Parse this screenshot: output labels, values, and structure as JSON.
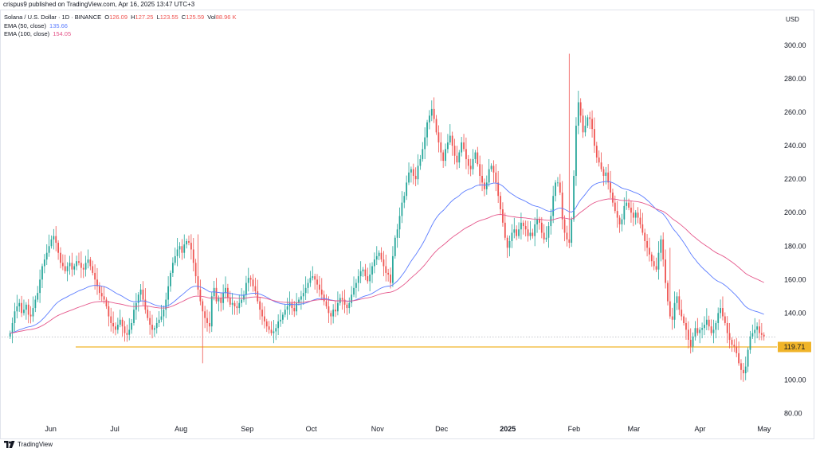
{
  "header": {
    "published": "crispus9 published on TradingView.com, Apr 16, 2025 13:47 UTC+3"
  },
  "legend": {
    "symbol": "Solana / U.S. Dollar · 1D · BINANCE",
    "open_label": "O",
    "open": "126.09",
    "high_label": "H",
    "high": "127.25",
    "low_label": "L",
    "low": "123.55",
    "close_label": "C",
    "close": "125.59",
    "vol_label": "Vol",
    "vol": "88.96 K",
    "ema50_label": "EMA (50, close)",
    "ema50_value": "135.66",
    "ema100_label": "EMA (100, close)",
    "ema100_value": "154.05"
  },
  "currency": "USD",
  "footer": {
    "brand": "TradingView"
  },
  "colors": {
    "up": "#26a69a",
    "down": "#ef5350",
    "ema50": "#5b7cff",
    "ema100": "#e5578b",
    "support": "#f0b429",
    "grid": "#e0e3eb"
  },
  "chart_data": {
    "type": "candlestick",
    "title": "Solana / U.S. Dollar · 1D · BINANCE",
    "x_ticks": [
      {
        "label": "Jun",
        "bold": false,
        "day": 23
      },
      {
        "label": "Jul",
        "bold": false,
        "day": 53
      },
      {
        "label": "Aug",
        "bold": false,
        "day": 84
      },
      {
        "label": "Sep",
        "bold": false,
        "day": 115
      },
      {
        "label": "Oct",
        "bold": false,
        "day": 145
      },
      {
        "label": "Nov",
        "bold": false,
        "day": 176
      },
      {
        "label": "Dec",
        "bold": false,
        "day": 206
      },
      {
        "label": "2025",
        "bold": true,
        "day": 237
      },
      {
        "label": "Feb",
        "bold": false,
        "day": 268
      },
      {
        "label": "Mar",
        "bold": false,
        "day": 296
      },
      {
        "label": "Apr",
        "bold": false,
        "day": 327
      },
      {
        "label": "May",
        "bold": false,
        "day": 357
      }
    ],
    "y_ticks": [
      80,
      100,
      120,
      140,
      160,
      180,
      200,
      220,
      240,
      260,
      280,
      300
    ],
    "ylim": [
      75,
      310
    ],
    "xlim": [
      0,
      363
    ],
    "support_level": {
      "value": 119.71,
      "label": "119.71"
    },
    "current_price": 125.59,
    "closes": [
      128,
      134,
      141,
      144,
      146,
      140,
      142,
      145,
      139,
      138,
      143,
      148,
      152,
      160,
      168,
      172,
      176,
      180,
      184,
      186,
      182,
      176,
      170,
      168,
      165,
      168,
      170,
      166,
      168,
      171,
      170,
      167,
      166,
      170,
      172,
      168,
      164,
      160,
      156,
      152,
      150,
      148,
      144,
      138,
      134,
      132,
      130,
      133,
      136,
      132,
      128,
      127,
      130,
      134,
      142,
      146,
      151,
      154,
      148,
      142,
      137,
      133,
      130,
      131,
      134,
      136,
      138,
      142,
      148,
      156,
      164,
      170,
      174,
      178,
      180,
      176,
      181,
      183,
      182,
      178,
      170,
      162,
      154,
      147,
      141,
      137,
      134,
      132,
      150,
      155,
      147,
      149,
      146,
      152,
      155,
      149,
      145,
      146,
      144,
      143,
      146,
      148,
      151,
      158,
      161,
      160,
      156,
      153,
      147,
      142,
      138,
      135,
      132,
      130,
      128,
      129,
      131,
      135,
      136,
      139,
      142,
      144,
      146,
      143,
      141,
      146,
      148,
      150,
      152,
      155,
      158,
      161,
      162,
      160,
      157,
      154,
      151,
      147,
      144,
      140,
      138,
      142,
      141,
      146,
      149,
      148,
      145,
      143,
      146,
      151,
      155,
      158,
      162,
      165,
      166,
      162,
      159,
      163,
      168,
      172,
      174,
      176,
      172,
      168,
      164,
      163,
      158,
      174,
      185,
      190,
      198,
      206,
      210,
      218,
      224,
      226,
      222,
      220,
      228,
      232,
      238,
      245,
      254,
      258,
      262,
      256,
      248,
      242,
      236,
      231,
      238,
      242,
      246,
      240,
      234,
      230,
      236,
      242,
      238,
      232,
      228,
      226,
      232,
      236,
      229,
      222,
      218,
      214,
      218,
      226,
      228,
      224,
      218,
      210,
      202,
      194,
      185,
      179,
      183,
      188,
      190,
      186,
      190,
      194,
      192,
      190,
      186,
      188,
      186,
      193,
      196,
      194,
      188,
      184,
      185,
      192,
      198,
      210,
      218,
      218,
      212,
      196,
      188,
      184,
      182,
      196,
      222,
      252,
      266,
      258,
      248,
      252,
      257,
      256,
      250,
      240,
      233,
      230,
      226,
      222,
      224,
      218,
      212,
      206,
      201,
      197,
      193,
      196,
      204,
      206,
      203,
      200,
      197,
      200,
      197,
      193,
      188,
      183,
      179,
      175,
      171,
      168,
      166,
      176,
      184,
      172,
      158,
      147,
      138,
      136,
      146,
      150,
      142,
      138,
      134,
      130,
      124,
      120,
      126,
      131,
      128,
      130,
      131,
      133,
      136,
      132,
      128,
      130,
      134,
      140,
      143,
      138,
      134,
      128,
      124,
      121,
      120,
      116,
      110,
      106,
      104,
      108,
      118,
      126,
      128,
      130,
      132,
      128,
      127,
      126
    ]
  }
}
